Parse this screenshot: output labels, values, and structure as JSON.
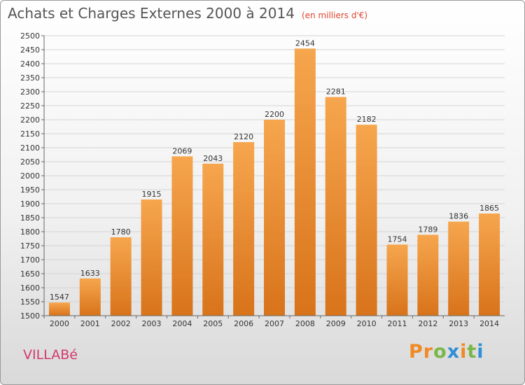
{
  "header": {
    "title": "Achats et Charges Externes 2000 à 2014",
    "unit": "(en milliers d'€)"
  },
  "footer": {
    "city": "VILLABé",
    "logo": "Proxiti"
  },
  "colors": {
    "bar_top": "#f6a64e",
    "bar_bottom": "#d8731a",
    "title": "#555555",
    "unit": "#e0452f",
    "city": "#d13a6e",
    "logo_letters": [
      "#f08a24",
      "#f08a24",
      "#7ab648",
      "#2e8fd6",
      "#f08a24",
      "#7ab648",
      "#2e8fd6"
    ]
  },
  "chart_data": {
    "type": "bar",
    "title": "Achats et Charges Externes 2000 à 2014",
    "subtitle": "(en milliers d'€)",
    "categories": [
      "2000",
      "2001",
      "2002",
      "2003",
      "2004",
      "2005",
      "2006",
      "2007",
      "2008",
      "2009",
      "2010",
      "2011",
      "2012",
      "2013",
      "2014"
    ],
    "values": [
      1547,
      1633,
      1780,
      1915,
      2069,
      2043,
      2120,
      2200,
      2454,
      2281,
      2182,
      1754,
      1789,
      1836,
      1865
    ],
    "xlabel": "",
    "ylabel": "",
    "ylim": [
      1500,
      2500
    ],
    "ytick_step": 50,
    "grid": true,
    "legend": "none"
  }
}
